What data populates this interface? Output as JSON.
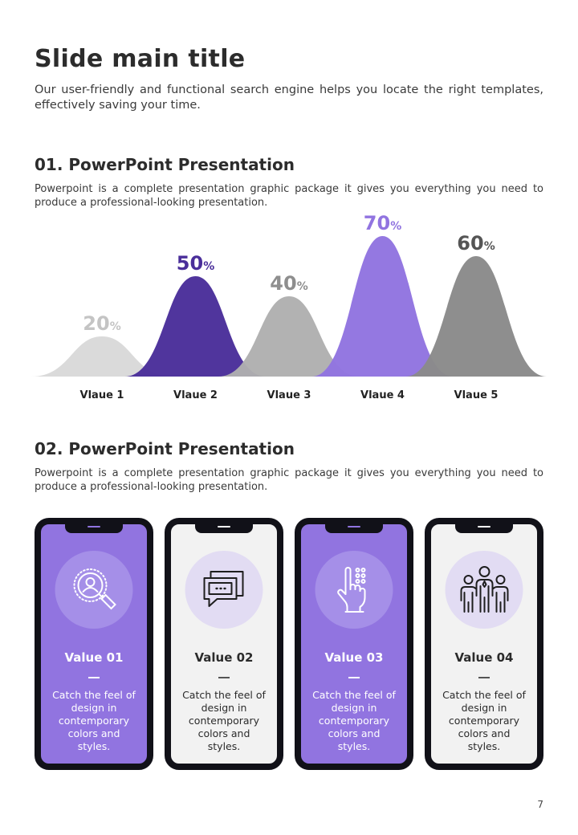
{
  "page": {
    "title": "Slide main title",
    "intro": "Our user-friendly and functional search engine helps you locate the right templates, effectively saving your time.",
    "page_number": "7"
  },
  "section1": {
    "title": "01. PowerPoint Presentation",
    "text": "Powerpoint is a complete presentation graphic package it gives you everything you need to produce a professional-looking presentation."
  },
  "section2": {
    "title": "02. PowerPoint Presentation",
    "text": "Powerpoint is a complete presentation graphic package it gives you everything you need to produce a professional-looking presentation."
  },
  "chart_data": {
    "type": "area",
    "categories": [
      "Vlaue 1",
      "Vlaue 2",
      "Vlaue 3",
      "Vlaue 4",
      "Vlaue 5"
    ],
    "values": [
      20,
      50,
      40,
      70,
      60
    ],
    "unit": "%",
    "colors": [
      "#d9d9d9",
      "#4a2e9a",
      "#b0b0b0",
      "#9174e0",
      "#8a8a8a"
    ],
    "label_colors": [
      "#c4c4c4",
      "#4a2e9a",
      "#8e8e8e",
      "#9174e0",
      "#555555"
    ],
    "ylim": [
      0,
      70
    ],
    "grid": false
  },
  "cards": [
    {
      "title": "Value 01",
      "text": "Catch the feel of design in contemporary colors and styles.",
      "icon": "search-user-icon",
      "theme": "purple"
    },
    {
      "title": "Value 02",
      "text": "Catch the feel of design in contemporary colors and styles.",
      "icon": "chat-bubbles-icon",
      "theme": "light"
    },
    {
      "title": "Value 03",
      "text": "Catch the feel of design in contemporary colors and styles.",
      "icon": "hand-keypad-icon",
      "theme": "purple"
    },
    {
      "title": "Value 04",
      "text": "Catch the feel of design in contemporary colors and styles.",
      "icon": "team-icon",
      "theme": "light"
    }
  ]
}
